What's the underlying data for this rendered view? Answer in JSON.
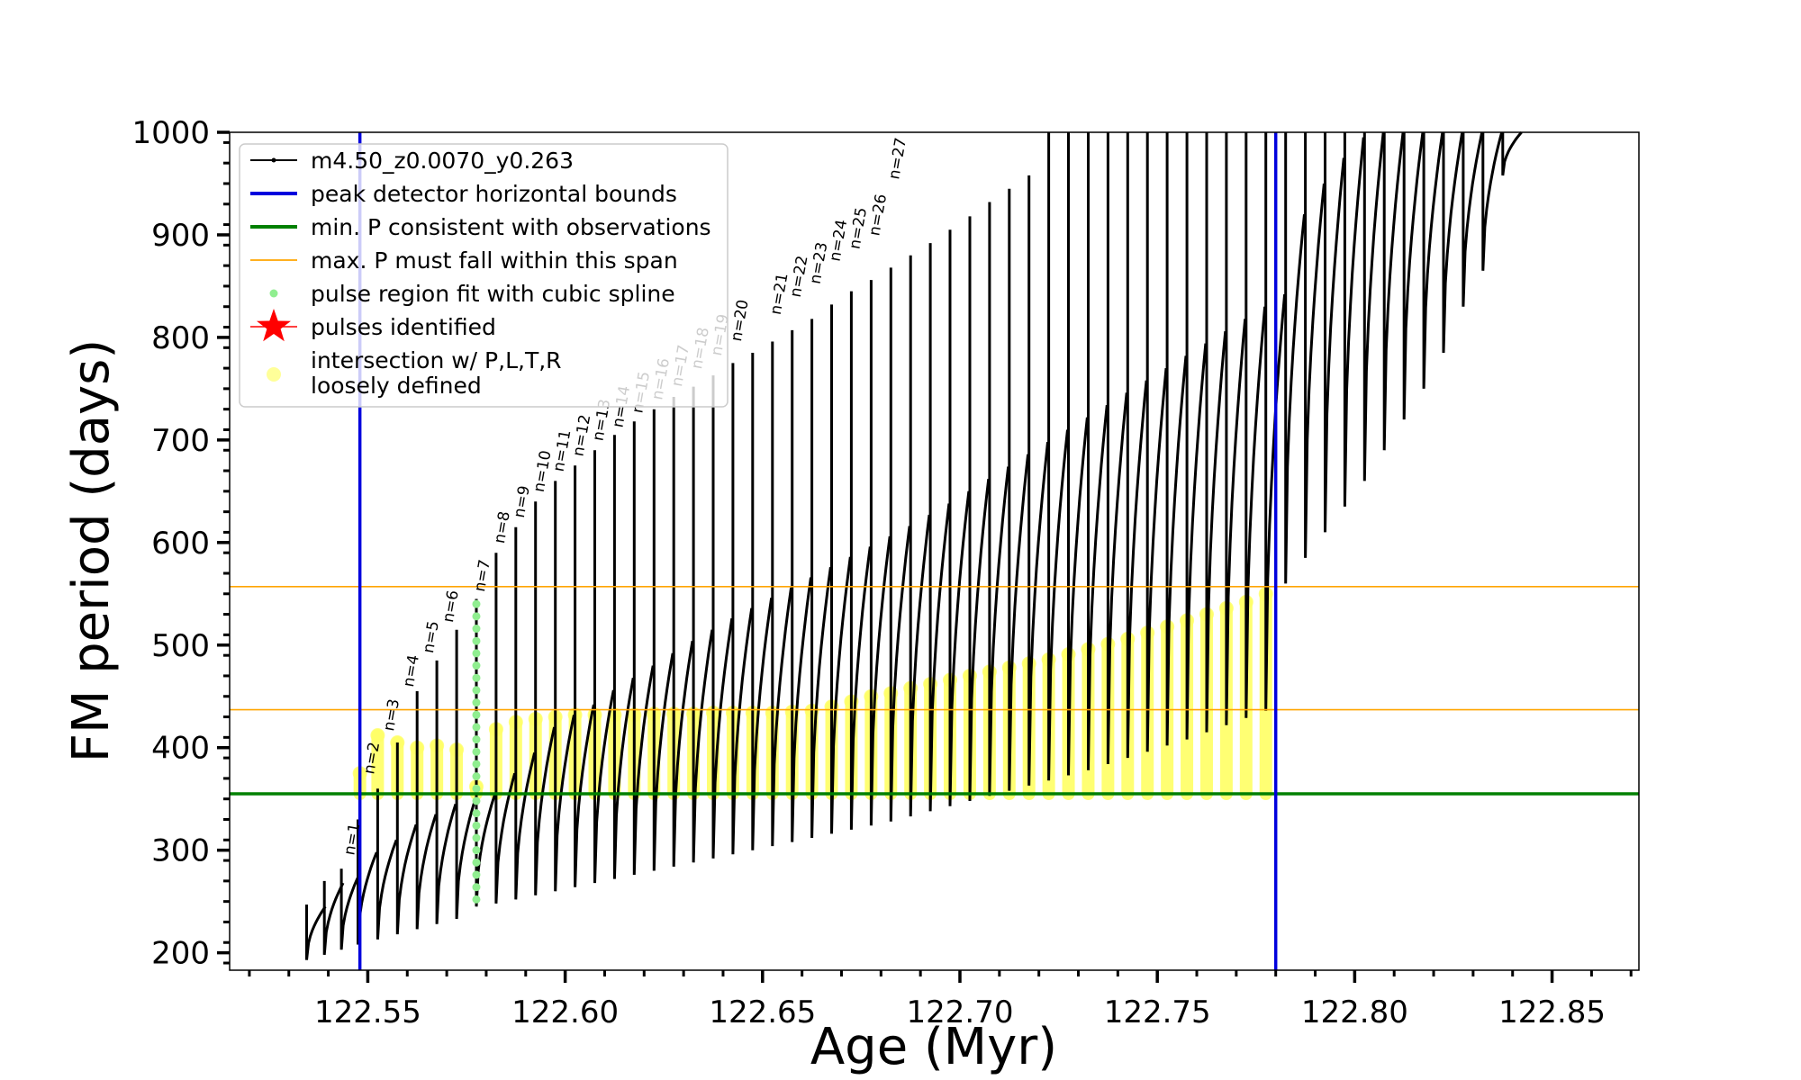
{
  "chart_data": {
    "type": "line",
    "title": "",
    "xlabel": "Age (Myr)",
    "ylabel": "FM period (days)",
    "xlim": [
      122.515,
      122.872
    ],
    "ylim": [
      183,
      1000
    ],
    "x_ticks": [
      122.55,
      122.6,
      122.65,
      122.7,
      122.75,
      122.8,
      122.85
    ],
    "x_tick_labels": [
      "122.55",
      "122.60",
      "122.65",
      "122.70",
      "122.75",
      "122.80",
      "122.85"
    ],
    "y_ticks": [
      200,
      300,
      400,
      500,
      600,
      700,
      800,
      900,
      1000
    ],
    "y_tick_labels": [
      "200",
      "300",
      "400",
      "500",
      "600",
      "700",
      "800",
      "900",
      "1000"
    ],
    "grid": false,
    "legend_position": "top-left",
    "legend": [
      {
        "label": "m4.50_z0.0070_y0.263",
        "marker": "line-dot",
        "color": "#000000"
      },
      {
        "label": "peak detector horizontal bounds",
        "marker": "line",
        "color": "#0000dd"
      },
      {
        "label": "min. P consistent with observations",
        "marker": "line",
        "color": "#008000"
      },
      {
        "label": "max. P must fall within this span",
        "marker": "thin-line",
        "color": "#ffa500"
      },
      {
        "label": "pulse region fit with cubic spline",
        "marker": "dot",
        "color": "#90ee90"
      },
      {
        "label": "pulses identified",
        "marker": "star",
        "color": "#ff0000"
      },
      {
        "label": "intersection w/ P,L,T,R",
        "label2": "loosely defined",
        "marker": "dot",
        "color": "#ffff99"
      }
    ],
    "vertical_lines": [
      {
        "x": 122.548,
        "color": "#0000dd"
      },
      {
        "x": 122.78,
        "color": "#0000dd"
      }
    ],
    "horizontal_lines": [
      {
        "y": 355,
        "color": "#008000"
      },
      {
        "y": 437,
        "color": "#ffa500"
      },
      {
        "y": 557,
        "color": "#ffa500"
      }
    ],
    "series": [
      {
        "name": "m4.50_z0.0070_y0.263",
        "color": "#000000",
        "description_points": "pulse spikes (age, min period, peak period, baseline end)",
        "spikes": [
          {
            "x": 122.5345,
            "p_min": 193,
            "p_peak": 247,
            "p_end": 245
          },
          {
            "x": 122.539,
            "p_min": 198,
            "p_peak": 270,
            "p_end": 268
          },
          {
            "x": 122.5433,
            "p_min": 203,
            "p_peak": 282,
            "p_end": 278
          },
          {
            "x": 122.5475,
            "p_min": 208,
            "p_peak": 330,
            "p_end": 298
          },
          {
            "x": 122.5525,
            "p_min": 213,
            "p_peak": 360,
            "p_end": 310
          },
          {
            "x": 122.5575,
            "p_min": 218,
            "p_peak": 405,
            "p_end": 325
          },
          {
            "x": 122.5625,
            "p_min": 223,
            "p_peak": 455,
            "p_end": 335
          },
          {
            "x": 122.5675,
            "p_min": 228,
            "p_peak": 485,
            "p_end": 345
          },
          {
            "x": 122.5725,
            "p_min": 233,
            "p_peak": 515,
            "p_end": 350
          },
          {
            "x": 122.5775,
            "p_min": 245,
            "p_peak": 545,
            "p_end": 355
          },
          {
            "x": 122.5825,
            "p_min": 248,
            "p_peak": 590,
            "p_end": 375
          },
          {
            "x": 122.5875,
            "p_min": 252,
            "p_peak": 615,
            "p_end": 395
          },
          {
            "x": 122.5925,
            "p_min": 256,
            "p_peak": 640,
            "p_end": 420
          },
          {
            "x": 122.5975,
            "p_min": 260,
            "p_peak": 660,
            "p_end": 432
          },
          {
            "x": 122.6025,
            "p_min": 264,
            "p_peak": 675,
            "p_end": 442
          },
          {
            "x": 122.6075,
            "p_min": 268,
            "p_peak": 690,
            "p_end": 456
          },
          {
            "x": 122.6125,
            "p_min": 272,
            "p_peak": 705,
            "p_end": 468
          },
          {
            "x": 122.6175,
            "p_min": 276,
            "p_peak": 718,
            "p_end": 480
          },
          {
            "x": 122.6225,
            "p_min": 280,
            "p_peak": 730,
            "p_end": 492
          },
          {
            "x": 122.6275,
            "p_min": 284,
            "p_peak": 742,
            "p_end": 504
          },
          {
            "x": 122.6325,
            "p_min": 288,
            "p_peak": 752,
            "p_end": 515
          },
          {
            "x": 122.6375,
            "p_min": 292,
            "p_peak": 763,
            "p_end": 526
          },
          {
            "x": 122.6425,
            "p_min": 296,
            "p_peak": 775,
            "p_end": 536
          },
          {
            "x": 122.6475,
            "p_min": 300,
            "p_peak": 785,
            "p_end": 546
          },
          {
            "x": 122.6525,
            "p_min": 304,
            "p_peak": 796,
            "p_end": 556
          },
          {
            "x": 122.6575,
            "p_min": 308,
            "p_peak": 807,
            "p_end": 566
          },
          {
            "x": 122.6625,
            "p_min": 312,
            "p_peak": 818,
            "p_end": 576
          },
          {
            "x": 122.6675,
            "p_min": 316,
            "p_peak": 832,
            "p_end": 586
          },
          {
            "x": 122.6725,
            "p_min": 320,
            "p_peak": 845,
            "p_end": 596
          },
          {
            "x": 122.6775,
            "p_min": 324,
            "p_peak": 856,
            "p_end": 606
          },
          {
            "x": 122.6825,
            "p_min": 328,
            "p_peak": 868,
            "p_end": 616
          },
          {
            "x": 122.6875,
            "p_min": 333,
            "p_peak": 880,
            "p_end": 627
          },
          {
            "x": 122.6925,
            "p_min": 338,
            "p_peak": 892,
            "p_end": 638
          },
          {
            "x": 122.6975,
            "p_min": 343,
            "p_peak": 905,
            "p_end": 650
          },
          {
            "x": 122.7025,
            "p_min": 348,
            "p_peak": 918,
            "p_end": 662
          },
          {
            "x": 122.7075,
            "p_min": 353,
            "p_peak": 932,
            "p_end": 674
          },
          {
            "x": 122.7125,
            "p_min": 358,
            "p_peak": 945,
            "p_end": 686
          },
          {
            "x": 122.7175,
            "p_min": 363,
            "p_peak": 958,
            "p_end": 698
          },
          {
            "x": 122.7225,
            "p_min": 368,
            "p_peak": 1000,
            "p_end": 710
          },
          {
            "x": 122.7275,
            "p_min": 373,
            "p_peak": 1000,
            "p_end": 722
          },
          {
            "x": 122.7325,
            "p_min": 378,
            "p_peak": 1000,
            "p_end": 734
          },
          {
            "x": 122.7375,
            "p_min": 384,
            "p_peak": 1000,
            "p_end": 746
          },
          {
            "x": 122.7425,
            "p_min": 390,
            "p_peak": 1000,
            "p_end": 758
          },
          {
            "x": 122.7475,
            "p_min": 396,
            "p_peak": 1000,
            "p_end": 770
          },
          {
            "x": 122.7525,
            "p_min": 402,
            "p_peak": 1000,
            "p_end": 782
          },
          {
            "x": 122.7575,
            "p_min": 408,
            "p_peak": 1000,
            "p_end": 794
          },
          {
            "x": 122.7625,
            "p_min": 415,
            "p_peak": 1000,
            "p_end": 806
          },
          {
            "x": 122.7675,
            "p_min": 422,
            "p_peak": 1000,
            "p_end": 818
          },
          {
            "x": 122.7725,
            "p_min": 429,
            "p_peak": 1000,
            "p_end": 830
          },
          {
            "x": 122.7775,
            "p_min": 436,
            "p_peak": 1000,
            "p_end": 842
          },
          {
            "x": 122.7825,
            "p_min": 560,
            "p_peak": 1000,
            "p_end": 920
          },
          {
            "x": 122.7875,
            "p_min": 585,
            "p_peak": 1000,
            "p_end": 950
          },
          {
            "x": 122.7925,
            "p_min": 610,
            "p_peak": 1000,
            "p_end": 975
          },
          {
            "x": 122.7975,
            "p_min": 635,
            "p_peak": 1000,
            "p_end": 995
          },
          {
            "x": 122.8025,
            "p_min": 660,
            "p_peak": 1000,
            "p_end": 1000
          },
          {
            "x": 122.8075,
            "p_min": 690,
            "p_peak": 1000,
            "p_end": 1000
          },
          {
            "x": 122.8125,
            "p_min": 720,
            "p_peak": 1000,
            "p_end": 1000
          },
          {
            "x": 122.8175,
            "p_min": 750,
            "p_peak": 1000,
            "p_end": 1000
          },
          {
            "x": 122.8225,
            "p_min": 785,
            "p_peak": 1000,
            "p_end": 1000
          },
          {
            "x": 122.8275,
            "p_min": 830,
            "p_peak": 1000,
            "p_end": 1000
          },
          {
            "x": 122.8325,
            "p_min": 865,
            "p_peak": 1000,
            "p_end": 1000
          },
          {
            "x": 122.8375,
            "p_min": 958,
            "p_peak": 1000,
            "p_end": 1000
          }
        ]
      },
      {
        "name": "pulse region fit with cubic spline",
        "color": "#90ee90",
        "x": [
          122.5775,
          122.5775
        ],
        "y": [
          252,
          545
        ]
      },
      {
        "name": "intersection w/ P,L,T,R loosely defined",
        "color": "#ffff66",
        "points": [
          [
            122.548,
            375
          ],
          [
            122.5525,
            412
          ],
          [
            122.5575,
            405
          ],
          [
            122.5625,
            400
          ],
          [
            122.5675,
            402
          ],
          [
            122.5725,
            398
          ],
          [
            122.5775,
            362
          ],
          [
            122.5825,
            418
          ],
          [
            122.5875,
            425
          ],
          [
            122.5925,
            428
          ],
          [
            122.5975,
            430
          ],
          [
            122.6025,
            432
          ],
          [
            122.6075,
            432
          ],
          [
            122.6125,
            432
          ],
          [
            122.6175,
            432
          ],
          [
            122.6225,
            433
          ],
          [
            122.6275,
            433
          ],
          [
            122.6325,
            433
          ],
          [
            122.6375,
            434
          ],
          [
            122.6425,
            434
          ],
          [
            122.6475,
            434
          ],
          [
            122.6525,
            434
          ],
          [
            122.6575,
            435
          ],
          [
            122.6625,
            436
          ],
          [
            122.6675,
            440
          ],
          [
            122.6725,
            445
          ],
          [
            122.6775,
            450
          ],
          [
            122.6825,
            453
          ],
          [
            122.6875,
            458
          ],
          [
            122.6925,
            462
          ],
          [
            122.6975,
            466
          ],
          [
            122.7025,
            470
          ],
          [
            122.7075,
            474
          ],
          [
            122.7125,
            478
          ],
          [
            122.7175,
            482
          ],
          [
            122.7225,
            486
          ],
          [
            122.7275,
            491
          ],
          [
            122.7325,
            496
          ],
          [
            122.7375,
            501
          ],
          [
            122.7425,
            506
          ],
          [
            122.7475,
            512
          ],
          [
            122.7525,
            518
          ],
          [
            122.7575,
            524
          ],
          [
            122.7625,
            530
          ],
          [
            122.7675,
            536
          ],
          [
            122.7725,
            542
          ],
          [
            122.7775,
            550
          ]
        ]
      }
    ],
    "annotations": [
      {
        "text": "n=1",
        "x": 122.5465,
        "y": 291
      },
      {
        "text": "n=2",
        "x": 122.5515,
        "y": 370
      },
      {
        "text": "n=3",
        "x": 122.5565,
        "y": 412
      },
      {
        "text": "n=4",
        "x": 122.5615,
        "y": 455
      },
      {
        "text": "n=5",
        "x": 122.5665,
        "y": 488
      },
      {
        "text": "n=6",
        "x": 122.5715,
        "y": 518
      },
      {
        "text": "n=7",
        "x": 122.5795,
        "y": 548
      },
      {
        "text": "n=8",
        "x": 122.5845,
        "y": 595
      },
      {
        "text": "n=9",
        "x": 122.5895,
        "y": 620
      },
      {
        "text": "n=10",
        "x": 122.5945,
        "y": 645
      },
      {
        "text": "n=11",
        "x": 122.5995,
        "y": 665
      },
      {
        "text": "n=12",
        "x": 122.6045,
        "y": 680
      },
      {
        "text": "n=13",
        "x": 122.6095,
        "y": 695
      },
      {
        "text": "n=14",
        "x": 122.6145,
        "y": 708
      },
      {
        "text": "n=15",
        "x": 122.6195,
        "y": 722
      },
      {
        "text": "n=16",
        "x": 122.6245,
        "y": 735
      },
      {
        "text": "n=17",
        "x": 122.6295,
        "y": 748
      },
      {
        "text": "n=18",
        "x": 122.6345,
        "y": 765
      },
      {
        "text": "n=19",
        "x": 122.6395,
        "y": 778
      },
      {
        "text": "n=20",
        "x": 122.6445,
        "y": 792
      },
      {
        "text": "n=21",
        "x": 122.6545,
        "y": 818
      },
      {
        "text": "n=22",
        "x": 122.6595,
        "y": 835
      },
      {
        "text": "n=23",
        "x": 122.6645,
        "y": 848
      },
      {
        "text": "n=24",
        "x": 122.6695,
        "y": 870
      },
      {
        "text": "n=25",
        "x": 122.6745,
        "y": 882
      },
      {
        "text": "n=26",
        "x": 122.6795,
        "y": 895
      },
      {
        "text": "n=27",
        "x": 122.6845,
        "y": 950
      }
    ]
  }
}
